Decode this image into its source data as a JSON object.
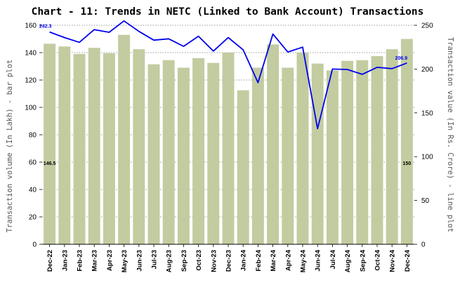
{
  "chart_data": {
    "type": "bar",
    "title": "Chart - 11: Trends in NETC (Linked to Bank Account) Transactions",
    "ylabel": "Transaction volume (In Lakh) - bar plot",
    "y2label": "Transaction value (In Rs. Crore) - line plot",
    "categories": [
      "Dec-22",
      "Jan-23",
      "Feb-23",
      "Mar-23",
      "Apr-23",
      "May-23",
      "Jun-23",
      "Jul-23",
      "Aug-23",
      "Sep-23",
      "Oct-23",
      "Nov-23",
      "Dec-23",
      "Jan-24",
      "Feb-24",
      "Mar-24",
      "Apr-24",
      "May-24",
      "Jun-24",
      "Jul-24",
      "Aug-24",
      "Sep-24",
      "Oct-24",
      "Nov-24",
      "Dec-24"
    ],
    "series": [
      {
        "type": "bar",
        "axis": "left",
        "color": "#c2cca0",
        "values": [
          146.5,
          144.5,
          139,
          143.5,
          139.5,
          153,
          142.5,
          131.5,
          134.5,
          129,
          136,
          132.5,
          140,
          112.5,
          129,
          146,
          129,
          140,
          132,
          127,
          134,
          134.5,
          137.5,
          142.5,
          150
        ]
      },
      {
        "type": "line",
        "axis": "right",
        "color": "#0000ee",
        "values": [
          242.3,
          236,
          230.5,
          245,
          242,
          255,
          243,
          233,
          234.5,
          226,
          237.5,
          220.5,
          236,
          222,
          184.5,
          240,
          219.5,
          225,
          132,
          200,
          199.5,
          194,
          202,
          200.5,
          206.9
        ]
      }
    ],
    "ylim": [
      0,
      160
    ],
    "yticks": [
      0,
      20,
      40,
      60,
      80,
      100,
      120,
      140,
      160
    ],
    "y2lim": [
      0,
      250
    ],
    "y2ticks": [
      0,
      50,
      100,
      150,
      200,
      250
    ],
    "annotations": {
      "bar_first": "146.5",
      "bar_last": "150",
      "line_first": "242.3",
      "line_last": "206.9"
    },
    "grid": "horizontal dotted",
    "legend": "none"
  }
}
